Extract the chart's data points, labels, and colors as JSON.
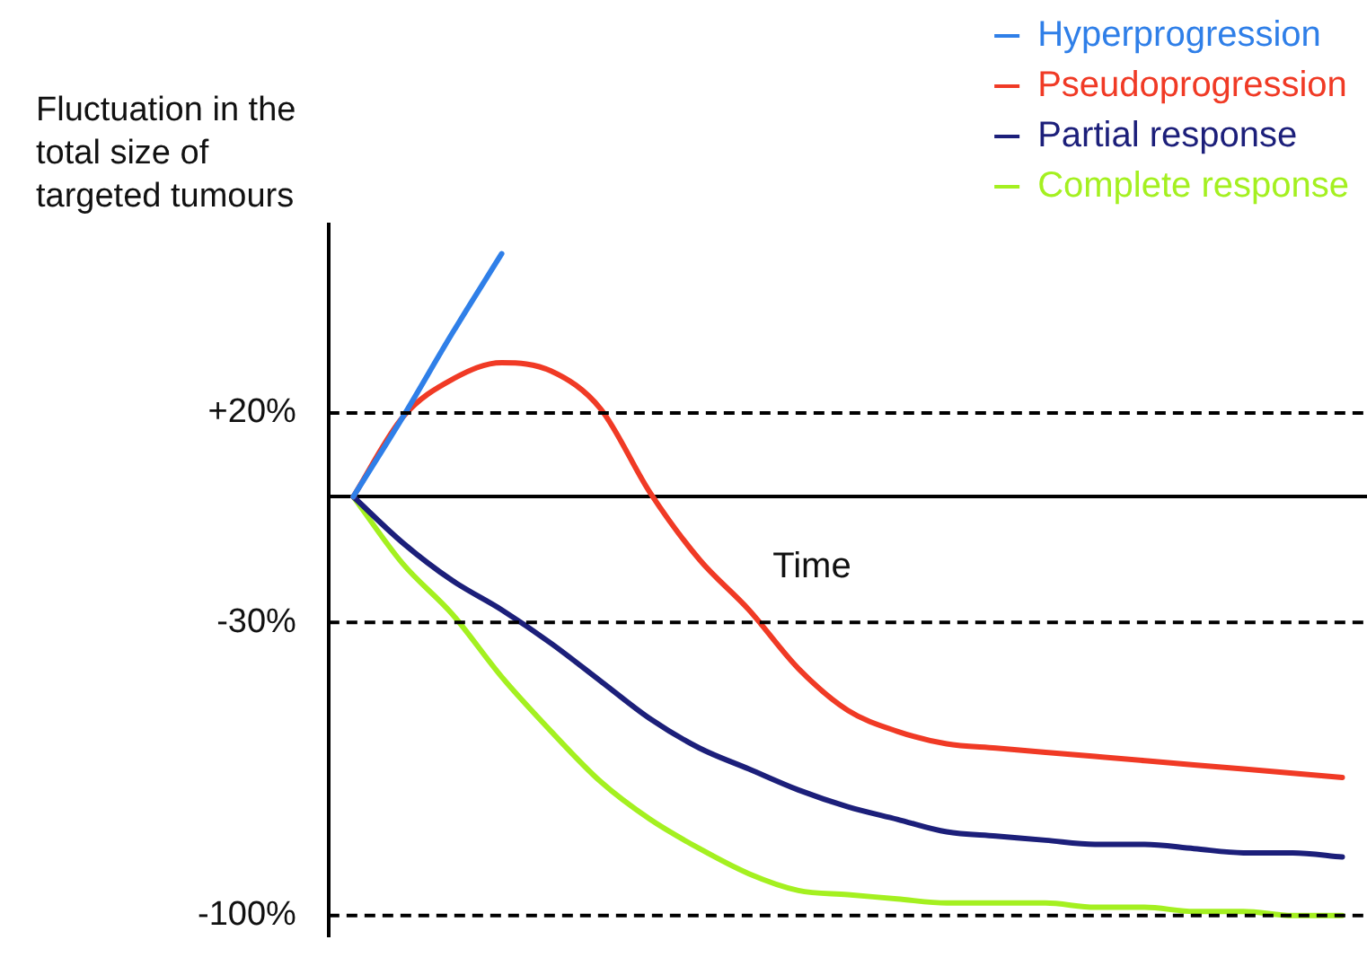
{
  "chart_data": {
    "type": "line",
    "ylabel": "Fluctuation in the total size of targeted tumours",
    "xlabel": "Time",
    "categories": [
      null,
      null,
      null,
      null,
      null,
      null,
      null,
      null,
      null,
      null,
      null,
      null,
      null,
      null,
      null,
      null,
      null,
      null,
      null,
      null,
      null
    ],
    "ylim": [
      -105,
      65
    ],
    "yticks": [
      {
        "value": 20,
        "label": "+20%"
      },
      {
        "value": -30,
        "label": "-30%"
      },
      {
        "value": -100,
        "label": "-100%"
      }
    ],
    "ref_lines": [
      {
        "axis": "y",
        "value": 20,
        "line_style": "dashed",
        "color": "#000000"
      },
      {
        "axis": "y",
        "value": -30,
        "line_style": "dashed",
        "color": "#000000"
      },
      {
        "axis": "y",
        "value": -100,
        "line_style": "dashed",
        "color": "#000000"
      }
    ],
    "series": [
      {
        "name": "Hyperprogression",
        "color": "#2f7fe8",
        "values": [
          0,
          19,
          39,
          58,
          null,
          null,
          null,
          null,
          null,
          null,
          null,
          null,
          null,
          null,
          null,
          null,
          null,
          null,
          null,
          null,
          null
        ]
      },
      {
        "name": "Pseudoprogression",
        "color": "#f03a25",
        "values": [
          0,
          19,
          28,
          32,
          30,
          21,
          1,
          -15,
          -27,
          -41,
          -51,
          -56,
          -59,
          -60,
          -61,
          -62,
          -63,
          -64,
          -65,
          -66,
          -67
        ]
      },
      {
        "name": "Partial response",
        "color": "#1c1f7a",
        "values": [
          0,
          -11,
          -20,
          -27,
          -35,
          -44,
          -53,
          -60,
          -65,
          -70,
          -74,
          -77,
          -80,
          -81,
          -82,
          -83,
          -83,
          -84,
          -85,
          -85,
          -86
        ]
      },
      {
        "name": "Complete response",
        "color": "#a4f020",
        "values": [
          0,
          -16,
          -28,
          -43,
          -56,
          -68,
          -77,
          -84,
          -90,
          -94,
          -95,
          -96,
          -97,
          -97,
          -97,
          -98,
          -98,
          -99,
          -99,
          -100,
          -100
        ]
      }
    ],
    "legend": "top right",
    "marker": "none",
    "line_style": "solid",
    "grid": false
  }
}
